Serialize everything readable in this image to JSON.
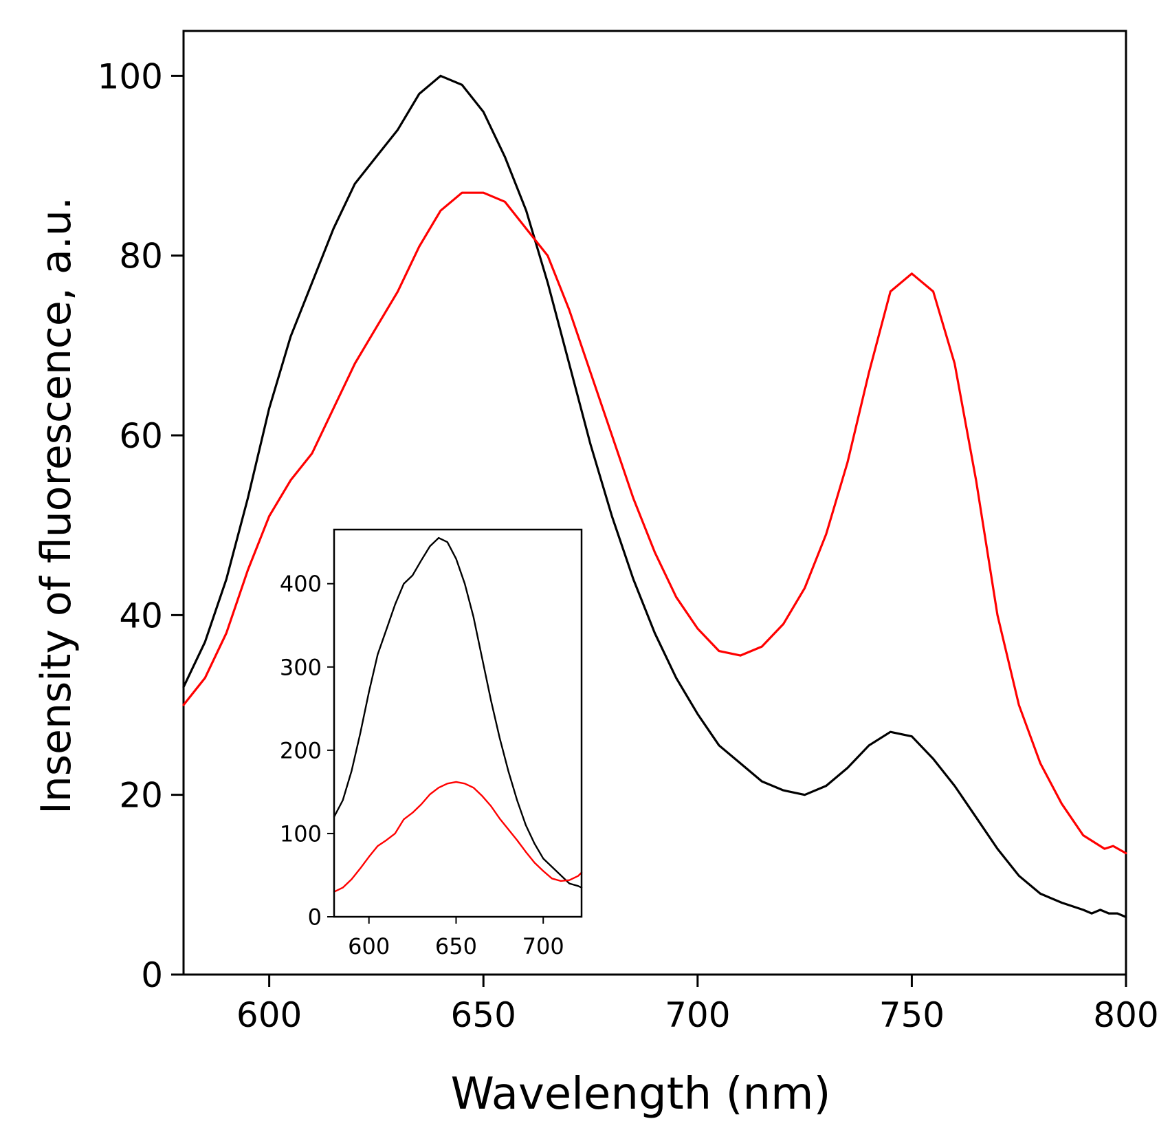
{
  "chart_data": [
    {
      "type": "line",
      "role": "main",
      "xlabel": "Wavelength (nm)",
      "ylabel": "Insensity of fluorescence, a.u.",
      "xlim": [
        580,
        800
      ],
      "ylim": [
        0,
        105
      ],
      "xticks": [
        600,
        650,
        700,
        750,
        800
      ],
      "yticks": [
        0,
        20,
        40,
        60,
        80,
        100
      ],
      "grid": false,
      "series": [
        {
          "name": "black",
          "color": "#000000",
          "x": [
            580,
            585,
            590,
            595,
            600,
            605,
            610,
            615,
            620,
            625,
            630,
            635,
            640,
            645,
            650,
            655,
            660,
            665,
            670,
            675,
            680,
            685,
            690,
            695,
            700,
            705,
            710,
            715,
            720,
            725,
            730,
            735,
            740,
            745,
            750,
            755,
            760,
            765,
            770,
            775,
            780,
            785,
            790,
            792,
            794,
            796,
            798,
            800
          ],
          "y": [
            32,
            37,
            44,
            53,
            63,
            71,
            77,
            83,
            88,
            91,
            94,
            98,
            100,
            99,
            96,
            91,
            85,
            77,
            68,
            59,
            51,
            44,
            38,
            33,
            29,
            25.5,
            23.5,
            21.5,
            20.5,
            20,
            21,
            23,
            25.5,
            27,
            26.5,
            24,
            21,
            17.5,
            14,
            11,
            9,
            8,
            7.2,
            6.8,
            7.2,
            6.8,
            6.8,
            6.4
          ]
        },
        {
          "name": "red",
          "color": "#ff0000",
          "x": [
            580,
            585,
            590,
            595,
            600,
            605,
            610,
            615,
            620,
            625,
            630,
            635,
            640,
            645,
            650,
            655,
            660,
            665,
            670,
            675,
            680,
            685,
            690,
            695,
            700,
            705,
            710,
            715,
            720,
            725,
            730,
            735,
            740,
            745,
            750,
            755,
            760,
            765,
            770,
            775,
            780,
            785,
            790,
            795,
            797,
            800
          ],
          "y": [
            30,
            33,
            38,
            45,
            51,
            55,
            58,
            63,
            68,
            72,
            76,
            81,
            85,
            87,
            87,
            86,
            83,
            80,
            74,
            67,
            60,
            53,
            47,
            42,
            38.5,
            36,
            35.5,
            36.5,
            39,
            43,
            49,
            57,
            67,
            76,
            78,
            76,
            68,
            55,
            40,
            30,
            23.5,
            19,
            15.5,
            14,
            14.3,
            13.5
          ]
        }
      ]
    },
    {
      "type": "line",
      "role": "inset",
      "xlim": [
        580,
        722
      ],
      "ylim": [
        0,
        465
      ],
      "xticks": [
        600,
        650,
        700
      ],
      "yticks": [
        0,
        100,
        200,
        300,
        400
      ],
      "grid": false,
      "series": [
        {
          "name": "black",
          "color": "#000000",
          "x": [
            580,
            585,
            590,
            595,
            600,
            605,
            610,
            615,
            620,
            625,
            630,
            635,
            640,
            645,
            650,
            655,
            660,
            665,
            670,
            675,
            680,
            685,
            690,
            695,
            700,
            705,
            710,
            715,
            720,
            722
          ],
          "y": [
            120,
            140,
            175,
            220,
            270,
            315,
            345,
            375,
            400,
            410,
            428,
            445,
            455,
            450,
            430,
            400,
            360,
            310,
            260,
            215,
            175,
            140,
            110,
            88,
            70,
            60,
            50,
            40,
            37,
            35
          ]
        },
        {
          "name": "red",
          "color": "#ff0000",
          "x": [
            580,
            585,
            590,
            595,
            600,
            605,
            610,
            615,
            620,
            625,
            630,
            635,
            640,
            645,
            650,
            655,
            660,
            665,
            670,
            675,
            680,
            685,
            690,
            695,
            700,
            705,
            710,
            715,
            720,
            722
          ],
          "y": [
            30,
            35,
            45,
            58,
            72,
            85,
            92,
            100,
            117,
            125,
            135,
            147,
            155,
            160,
            162,
            160,
            155,
            145,
            133,
            118,
            105,
            92,
            78,
            65,
            55,
            46,
            43,
            44,
            49,
            53
          ]
        }
      ]
    }
  ]
}
